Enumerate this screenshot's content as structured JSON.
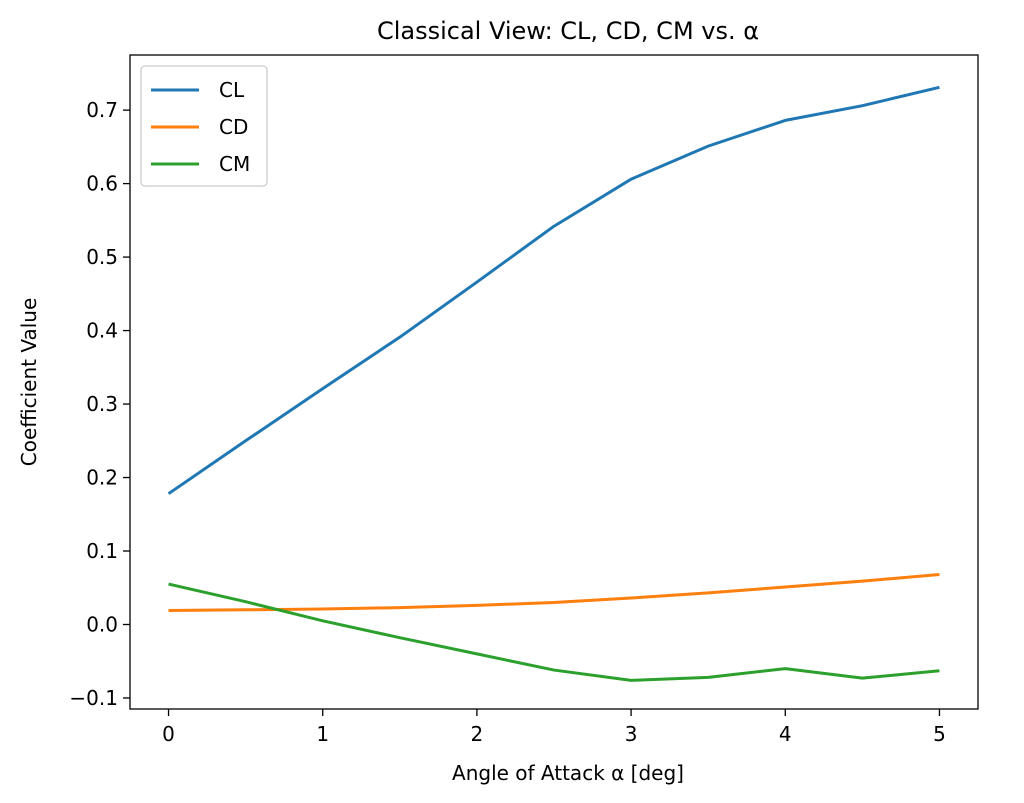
{
  "chart_data": {
    "type": "line",
    "title": "Classical View: CL, CD, CM vs. α",
    "xlabel": "Angle of Attack α [deg]",
    "ylabel": "Coefficient Value",
    "xlim": [
      -0.25,
      5.25
    ],
    "ylim": [
      -0.115,
      0.775
    ],
    "xticks": [
      0,
      1,
      2,
      3,
      4,
      5
    ],
    "xtick_labels": [
      "0",
      "1",
      "2",
      "3",
      "4",
      "5"
    ],
    "yticks": [
      -0.1,
      0.0,
      0.1,
      0.2,
      0.3,
      0.4,
      0.5,
      0.6,
      0.7
    ],
    "ytick_labels": [
      "−0.1",
      "0.0",
      "0.1",
      "0.2",
      "0.3",
      "0.4",
      "0.5",
      "0.6",
      "0.7"
    ],
    "grid": false,
    "legend_position": "top-left",
    "x": [
      0,
      0.5,
      1,
      1.5,
      2,
      2.5,
      3,
      3.5,
      4,
      4.5,
      5
    ],
    "series": [
      {
        "name": "CL",
        "color": "#1f77b4",
        "values": [
          0.178,
          0.25,
          0.321,
          0.391,
          0.466,
          0.542,
          0.606,
          0.651,
          0.686,
          0.706,
          0.731
        ]
      },
      {
        "name": "CD",
        "color": "#ff7f0e",
        "values": [
          0.019,
          0.02,
          0.021,
          0.023,
          0.026,
          0.03,
          0.036,
          0.043,
          0.051,
          0.059,
          0.068
        ]
      },
      {
        "name": "CM",
        "color": "#2ca02c",
        "values": [
          0.055,
          0.031,
          0.005,
          -0.018,
          -0.04,
          -0.062,
          -0.076,
          -0.072,
          -0.06,
          -0.073,
          -0.063
        ]
      }
    ]
  }
}
